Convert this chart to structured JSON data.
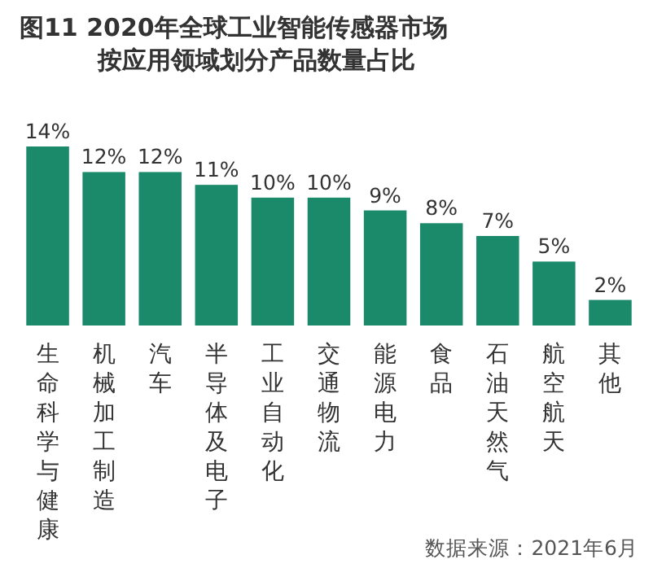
{
  "chart_data": {
    "type": "bar",
    "title": "图11 2020年全球工业智能传感器市场",
    "subtitle": "按应用领域划分产品数量占比",
    "categories": [
      "生命科学与健康",
      "机械加工制造",
      "汽车",
      "半导体及电子",
      "工业自动化",
      "交通物流",
      "能源电力",
      "食品",
      "石油天然气",
      "航空航天",
      "其他"
    ],
    "values": [
      14,
      12,
      12,
      11,
      10,
      10,
      9,
      8,
      7,
      5,
      2
    ],
    "value_labels": [
      "14%",
      "12%",
      "12%",
      "11%",
      "10%",
      "10%",
      "9%",
      "8%",
      "7%",
      "5%",
      "2%"
    ],
    "color": "#1b8a6b",
    "annotations": [
      "数据来源：2021年6月"
    ]
  }
}
